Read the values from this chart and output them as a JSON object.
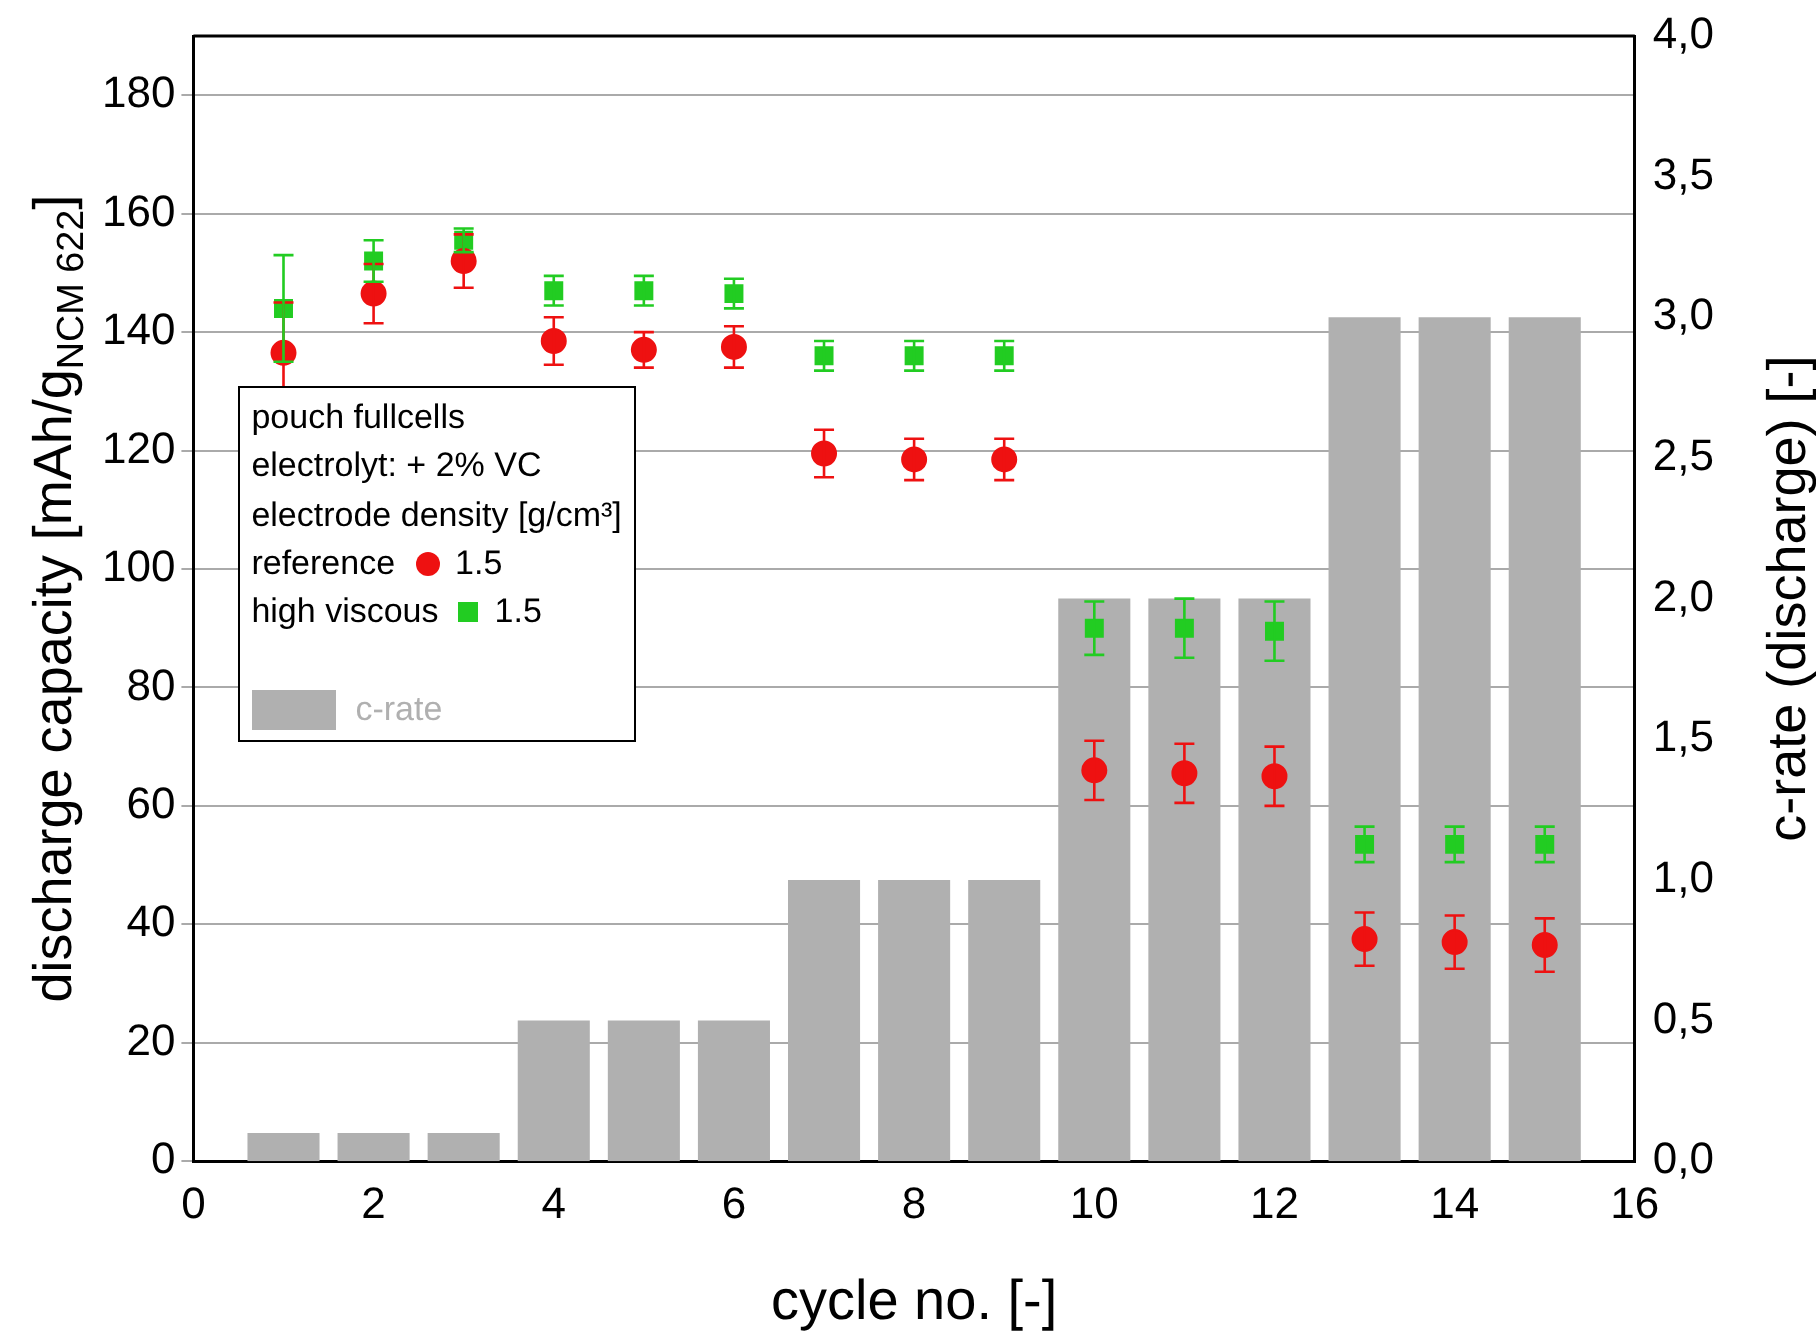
{
  "chart_data": {
    "type": "scatter",
    "xlabel": "cycle no. [-]",
    "ylabel": "discharge capacity [mAh/g$_{NCM 622}$]",
    "y2label": "c-rate (discharge) [-]",
    "xlim": [
      0,
      16
    ],
    "xticks": [
      0,
      2,
      4,
      6,
      8,
      10,
      12,
      14,
      16
    ],
    "ylim": [
      0,
      190
    ],
    "yticks": [
      0,
      20,
      40,
      60,
      80,
      100,
      120,
      140,
      160,
      180
    ],
    "y2lim": [
      0,
      4
    ],
    "y2ticks": [
      {
        "value": 0,
        "label": "0,0"
      },
      {
        "value": 0.5,
        "label": "0,5"
      },
      {
        "value": 1,
        "label": "1,0"
      },
      {
        "value": 1.5,
        "label": "1,5"
      },
      {
        "value": 2,
        "label": "2,0"
      },
      {
        "value": 2.5,
        "label": "2,5"
      },
      {
        "value": 3,
        "label": "3,0"
      },
      {
        "value": 3.5,
        "label": "3,5"
      },
      {
        "value": 4,
        "label": "4,0"
      }
    ],
    "grid": "y",
    "legend": "left",
    "legend_title": "electrode density [g/cm³]",
    "annotations": [
      "pouch fullcells",
      "electrolyt: + 2% VC",
      "1.5",
      "1.5"
    ],
    "x": [
      1,
      2,
      3,
      4,
      5,
      6,
      7,
      8,
      9,
      10,
      11,
      12,
      13,
      14,
      15
    ],
    "series": [
      {
        "name": "c-rate",
        "type": "bar",
        "axis": "y2",
        "color": "#b0b0b0",
        "values": [
          0.1,
          0.1,
          0.1,
          0.5,
          0.5,
          0.5,
          1,
          1,
          1,
          2,
          2,
          2,
          3,
          3,
          3
        ]
      },
      {
        "name": "reference",
        "marker": "circle",
        "color": "#ee1111",
        "values": [
          136.5,
          146.5,
          152,
          138.5,
          137,
          137.5,
          119.5,
          118.5,
          118.5,
          66,
          65.5,
          65,
          37.5,
          37,
          36.5
        ],
        "errors": [
          8.5,
          5,
          4.5,
          4,
          3,
          3.5,
          4,
          3.5,
          3.5,
          5,
          5,
          5,
          4.5,
          4.5,
          4.5
        ]
      },
      {
        "name": "high viscous",
        "marker": "square",
        "color": "#22cc22",
        "values": [
          144,
          152,
          155.5,
          147,
          147,
          146.5,
          136,
          136,
          136,
          90,
          90,
          89.5,
          53.5,
          53.5,
          53.5
        ],
        "errors": [
          9,
          3.5,
          2,
          2.5,
          2.5,
          2.5,
          2.5,
          2.5,
          2.5,
          4.5,
          5,
          5,
          3,
          3,
          3
        ]
      }
    ]
  }
}
